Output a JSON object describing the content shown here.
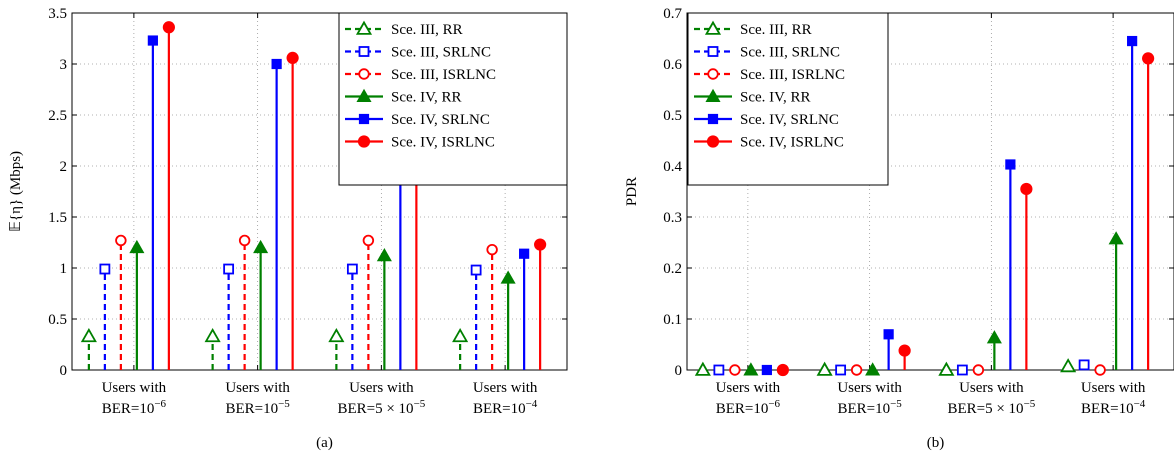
{
  "panels": [
    {
      "caption": "(a)"
    },
    {
      "caption": "(b)"
    }
  ],
  "legend": [
    {
      "label": "Sce. III, RR",
      "color": "#008000",
      "dash": true,
      "marker": "triangle",
      "filled": false
    },
    {
      "label": "Sce. III, SRLNC",
      "color": "#0000ff",
      "dash": true,
      "marker": "square",
      "filled": false
    },
    {
      "label": "Sce. III, ISRLNC",
      "color": "#ff0000",
      "dash": true,
      "marker": "circle",
      "filled": false
    },
    {
      "label": "Sce. IV, RR",
      "color": "#008000",
      "dash": false,
      "marker": "triangle",
      "filled": true
    },
    {
      "label": "Sce. IV, SRLNC",
      "color": "#0000ff",
      "dash": false,
      "marker": "square",
      "filled": true
    },
    {
      "label": "Sce. IV, ISRLNC",
      "color": "#ff0000",
      "dash": false,
      "marker": "circle",
      "filled": true
    }
  ],
  "chart_data": [
    {
      "type": "stem",
      "ylabel": "𝔼{η} (Mbps)",
      "ylim": [
        0,
        3.5
      ],
      "yticks": [
        "0",
        "0.5",
        "1",
        "1.5",
        "2",
        "2.5",
        "3",
        "3.5"
      ],
      "grid": true,
      "legend_position": "top-right",
      "categories": [
        {
          "line1": "Users with",
          "line2": "BER=10",
          "sup": "−6"
        },
        {
          "line1": "Users with",
          "line2": "BER=10",
          "sup": "−5"
        },
        {
          "line1": "Users with",
          "line2": "BER=5 × 10",
          "sup": "−5"
        },
        {
          "line1": "Users with",
          "line2": "BER=10",
          "sup": "−4"
        }
      ],
      "series": [
        {
          "name": "Sce. III, RR",
          "values": [
            0.33,
            0.33,
            0.33,
            0.33
          ]
        },
        {
          "name": "Sce. III, SRLNC",
          "values": [
            0.99,
            0.99,
            0.99,
            0.98
          ]
        },
        {
          "name": "Sce. III, ISRLNC",
          "values": [
            1.27,
            1.27,
            1.27,
            1.18
          ]
        },
        {
          "name": "Sce. IV, RR",
          "values": [
            1.2,
            1.2,
            1.12,
            0.9
          ]
        },
        {
          "name": "Sce. IV, SRLNC",
          "values": [
            3.23,
            3.0,
            1.92,
            1.14
          ]
        },
        {
          "name": "Sce. IV, ISRLNC",
          "values": [
            3.36,
            3.06,
            2.02,
            1.23
          ]
        }
      ]
    },
    {
      "type": "stem",
      "ylabel": "PDR",
      "ylim": [
        0,
        0.7
      ],
      "yticks": [
        "0",
        "0.1",
        "0.2",
        "0.3",
        "0.4",
        "0.5",
        "0.6",
        "0.7"
      ],
      "grid": true,
      "legend_position": "top-left",
      "categories": [
        {
          "line1": "Users with",
          "line2": "BER=10",
          "sup": "−6"
        },
        {
          "line1": "Users with",
          "line2": "BER=10",
          "sup": "−5"
        },
        {
          "line1": "Users with",
          "line2": "BER=5 × 10",
          "sup": "−5"
        },
        {
          "line1": "Users with",
          "line2": "BER=10",
          "sup": "−4"
        }
      ],
      "series": [
        {
          "name": "Sce. III, RR",
          "values": [
            0.0,
            0.0,
            0.0,
            0.007
          ]
        },
        {
          "name": "Sce. III, SRLNC",
          "values": [
            0.0,
            0.0,
            0.0,
            0.01
          ]
        },
        {
          "name": "Sce. III, ISRLNC",
          "values": [
            0.0,
            0.0,
            0.0,
            0.0
          ]
        },
        {
          "name": "Sce. IV, RR",
          "values": [
            0.0,
            0.0,
            0.063,
            0.257
          ]
        },
        {
          "name": "Sce. IV, SRLNC",
          "values": [
            0.0,
            0.07,
            0.403,
            0.645
          ]
        },
        {
          "name": "Sce. IV, ISRLNC",
          "values": [
            0.0,
            0.038,
            0.355,
            0.611
          ]
        }
      ]
    }
  ]
}
